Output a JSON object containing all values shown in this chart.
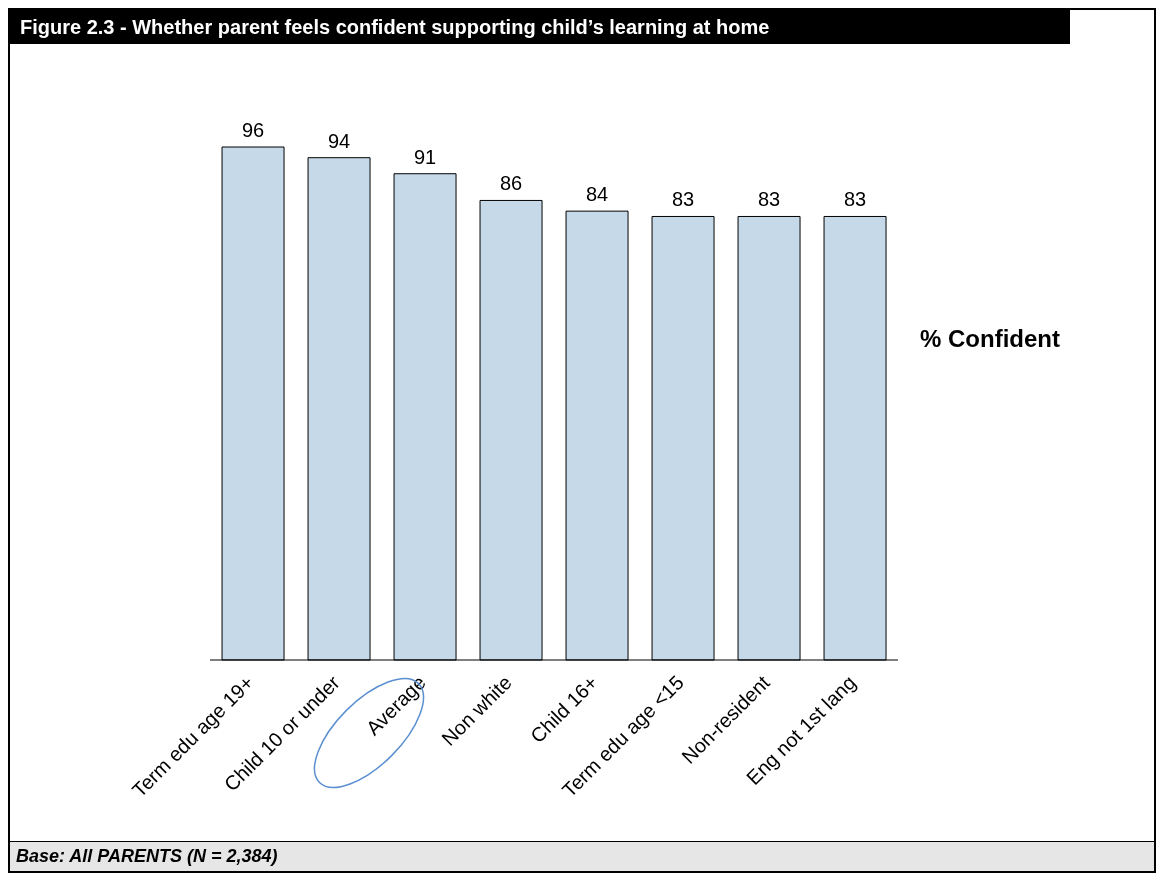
{
  "chart_data": {
    "type": "bar",
    "title": "Figure 2.3 - Whether parent feels confident supporting child’s learning at home",
    "ylabel": "% Confident",
    "categories": [
      "Term edu age 19+",
      "Child 10 or under",
      "Average",
      "Non white",
      "Child 16+",
      "Term edu age <15",
      "Non-resident",
      "Eng not 1st lang"
    ],
    "values": [
      96,
      94,
      91,
      86,
      84,
      83,
      83,
      83
    ],
    "color": "#c5d9e9",
    "data_labels": true,
    "grid": false,
    "annotations": [
      "Base: All PARENTS (N = 2,384)"
    ]
  }
}
